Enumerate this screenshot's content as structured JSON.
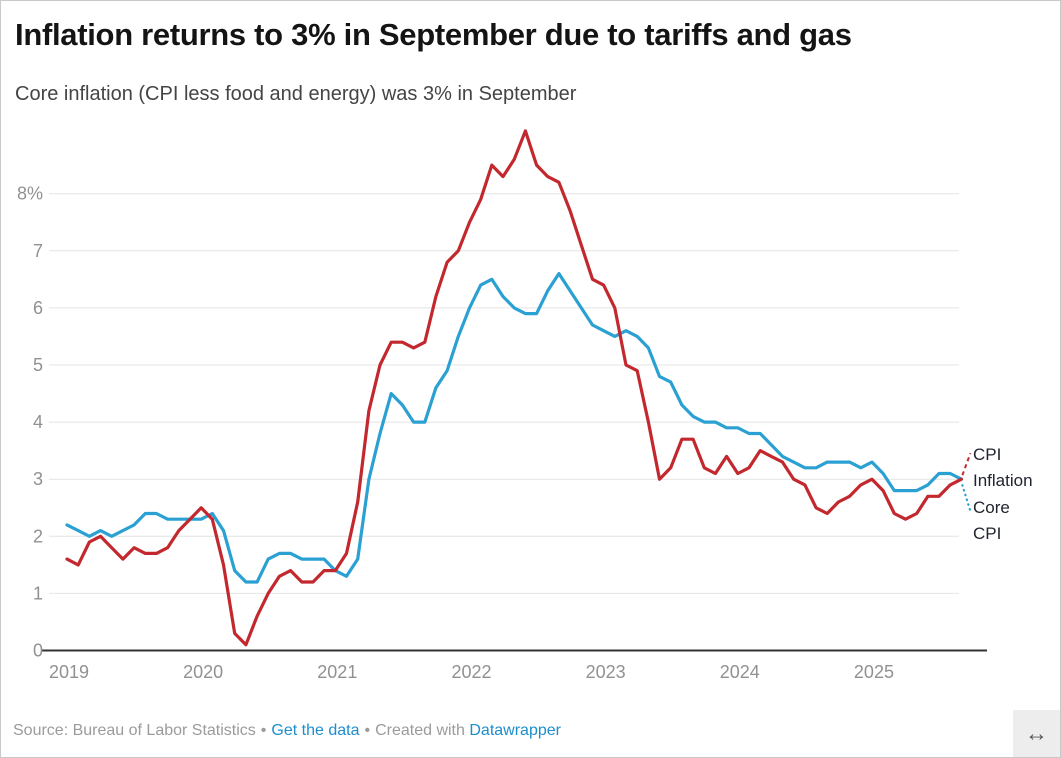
{
  "header": {
    "title": "Inflation returns to 3% in September due to tariffs and gas",
    "subtitle": "Core inflation (CPI less food and energy) was 3% in September"
  },
  "chart_data": {
    "type": "line",
    "x_unit": "month",
    "x_range": [
      "2019-01",
      "2025-09"
    ],
    "x_tick_labels": [
      "2019",
      "2020",
      "2021",
      "2022",
      "2023",
      "2024",
      "2025"
    ],
    "x_tick_month_index": [
      0,
      12,
      24,
      36,
      48,
      60,
      72
    ],
    "y_ticks": [
      0,
      1,
      2,
      3,
      4,
      5,
      6,
      7,
      8
    ],
    "y_tick_labels": [
      "0",
      "1",
      "2",
      "3",
      "4",
      "5",
      "6",
      "7",
      "8%"
    ],
    "ylim": [
      0,
      9.3
    ],
    "grid": "horizontal",
    "legend_position": "direct-right-labels",
    "series": [
      {
        "name": "Core CPI",
        "color": "#2ba0d2",
        "values": [
          2.2,
          2.1,
          2.0,
          2.1,
          2.0,
          2.1,
          2.2,
          2.4,
          2.4,
          2.3,
          2.3,
          2.3,
          2.3,
          2.4,
          2.1,
          1.4,
          1.2,
          1.2,
          1.6,
          1.7,
          1.7,
          1.6,
          1.6,
          1.6,
          1.4,
          1.3,
          1.6,
          3.0,
          3.8,
          4.5,
          4.3,
          4.0,
          4.0,
          4.6,
          4.9,
          5.5,
          6.0,
          6.4,
          6.5,
          6.2,
          6.0,
          5.9,
          5.9,
          6.3,
          6.6,
          6.3,
          6.0,
          5.7,
          5.6,
          5.5,
          5.6,
          5.5,
          5.3,
          4.8,
          4.7,
          4.3,
          4.1,
          4.0,
          4.0,
          3.9,
          3.9,
          3.8,
          3.8,
          3.6,
          3.4,
          3.3,
          3.2,
          3.2,
          3.3,
          3.3,
          3.3,
          3.2,
          3.3,
          3.1,
          2.8,
          2.8,
          2.8,
          2.9,
          3.1,
          3.1,
          3.0
        ]
      },
      {
        "name": "CPI Inflation",
        "color": "#c2282d",
        "values": [
          1.6,
          1.5,
          1.9,
          2.0,
          1.8,
          1.6,
          1.8,
          1.7,
          1.7,
          1.8,
          2.1,
          2.3,
          2.5,
          2.3,
          1.5,
          0.3,
          0.1,
          0.6,
          1.0,
          1.3,
          1.4,
          1.2,
          1.2,
          1.4,
          1.4,
          1.7,
          2.6,
          4.2,
          5.0,
          5.4,
          5.4,
          5.3,
          5.4,
          6.2,
          6.8,
          7.0,
          7.5,
          7.9,
          8.5,
          8.3,
          8.6,
          9.1,
          8.5,
          8.3,
          8.2,
          7.7,
          7.1,
          6.5,
          6.4,
          6.0,
          5.0,
          4.9,
          4.0,
          3.0,
          3.2,
          3.7,
          3.7,
          3.2,
          3.1,
          3.4,
          3.1,
          3.2,
          3.5,
          3.4,
          3.3,
          3.0,
          2.9,
          2.5,
          2.4,
          2.6,
          2.7,
          2.9,
          3.0,
          2.8,
          2.4,
          2.3,
          2.4,
          2.7,
          2.7,
          2.9,
          3.0
        ]
      }
    ],
    "end_labels": {
      "cpi": {
        "line1": "CPI",
        "line2": "Inflation"
      },
      "core": {
        "line1": "Core",
        "line2": "CPI"
      }
    }
  },
  "footer": {
    "source": "Source: Bureau of Labor Statistics",
    "separator": "•",
    "data_link": "Get the data",
    "created_prefix": "Created with",
    "tool_link": "Datawrapper",
    "resize_icon": "↔"
  },
  "colors": {
    "cpi_line": "#c2282d",
    "core_line": "#2ba0d2",
    "link": "#1d8ecd",
    "grid": "#e4e4e4",
    "axis_line": "#333333",
    "axis_text": "#919191",
    "title_text": "#141414",
    "subtitle_text": "#444444",
    "footer_text": "#9b9b9b",
    "label_text": "#20242e",
    "resize_bg": "#ededed"
  }
}
